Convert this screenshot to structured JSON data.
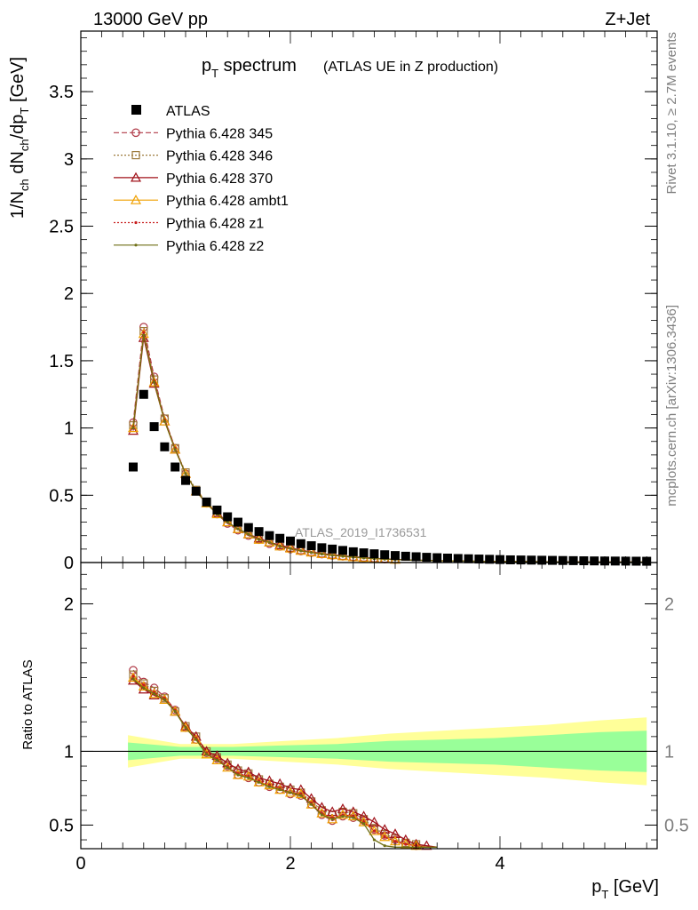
{
  "header": {
    "energy_label": "13000 GeV pp",
    "process_label": "Z+Jet"
  },
  "side_labels": {
    "rivet": "Rivet 3.1.10, ≥ 2.7M events",
    "mcplots": "mcplots.cern.ch [arXiv:1306.3436]"
  },
  "chart_data": [
    {
      "type": "scatter",
      "title_main": "p",
      "title_sub": "T",
      "title_rest": " spectrum",
      "title_note": "(ATLAS UE in Z production)",
      "watermark": "ATLAS_2019_I1736531",
      "ylabel_parts": [
        "1/N",
        "ch",
        " dN",
        "ch",
        "/dp",
        "T",
        " [GeV]"
      ],
      "xlim": [
        0,
        5.5
      ],
      "ylim": [
        0,
        3.95
      ],
      "yticks": [
        0,
        0.5,
        1,
        1.5,
        2,
        2.5,
        3,
        3.5
      ],
      "ytick_labels": [
        "0",
        "0.5",
        "1",
        "1.5",
        "2",
        "2.5",
        "3",
        "3.5"
      ],
      "x": [
        0.5,
        0.6,
        0.7,
        0.8,
        0.9,
        1.0,
        1.1,
        1.2,
        1.3,
        1.4,
        1.5,
        1.6,
        1.7,
        1.8,
        1.9,
        2.0,
        2.1,
        2.2,
        2.3,
        2.4,
        2.5,
        2.6,
        2.7,
        2.8,
        2.9,
        3.0,
        3.1,
        3.2,
        3.3,
        3.4,
        3.5,
        3.6,
        3.7,
        3.8,
        3.9,
        4.0,
        4.1,
        4.2,
        4.3,
        4.4,
        4.5,
        4.6,
        4.7,
        4.8,
        4.9,
        5.0,
        5.1,
        5.2,
        5.3,
        5.4
      ],
      "data_series": {
        "name": "ATLAS",
        "values": [
          0.71,
          1.25,
          1.01,
          0.86,
          0.71,
          0.61,
          0.53,
          0.45,
          0.39,
          0.34,
          0.3,
          0.26,
          0.23,
          0.2,
          0.18,
          0.16,
          0.14,
          0.125,
          0.11,
          0.1,
          0.09,
          0.08,
          0.072,
          0.065,
          0.058,
          0.052,
          0.047,
          0.043,
          0.039,
          0.036,
          0.033,
          0.03,
          0.028,
          0.026,
          0.024,
          0.022,
          0.02,
          0.019,
          0.018,
          0.017,
          0.016,
          0.015,
          0.014,
          0.013,
          0.012,
          0.0115,
          0.011,
          0.0105,
          0.01,
          0.0095
        ]
      },
      "series": [
        {
          "name": "Pythia 6.428 345",
          "color": "#b03a48",
          "dash": "6,3",
          "marker": "circle",
          "values": [
            1.04,
            1.75,
            1.38,
            1.07,
            0.85,
            0.66,
            0.53,
            0.44,
            0.36,
            0.29,
            0.24,
            0.2,
            0.17,
            0.14,
            0.12,
            0.1,
            0.085,
            0.073,
            0.062,
            0.053,
            0.046,
            0.039,
            0.034,
            0.029,
            0.025,
            0.022,
            0.019,
            0.017,
            0.015,
            0.013,
            0.012,
            0.011,
            0.01,
            0.009,
            0.008,
            0.0075,
            0.007,
            0.0065,
            0.006,
            0.0055,
            0.005,
            0.0047,
            0.0044,
            0.0041,
            0.0038,
            0.0036,
            0.0034,
            0.0032,
            0.003,
            0.0028
          ]
        },
        {
          "name": "Pythia 6.428 346",
          "color": "#9c7a3c",
          "dash": "2,2",
          "marker": "square",
          "values": [
            1.02,
            1.72,
            1.36,
            1.07,
            0.85,
            0.67,
            0.54,
            0.45,
            0.37,
            0.3,
            0.25,
            0.21,
            0.18,
            0.15,
            0.13,
            0.11,
            0.09,
            0.078,
            0.066,
            0.057,
            0.049,
            0.042,
            0.036,
            0.031,
            0.027,
            0.023,
            0.02,
            0.018,
            0.016,
            0.014,
            0.013,
            0.012,
            0.011,
            0.01,
            0.009,
            0.008,
            0.0075,
            0.007,
            0.0065,
            0.006,
            0.0055,
            0.005,
            0.0047,
            0.0044,
            0.0041,
            0.0038,
            0.0036,
            0.0034,
            0.0032,
            0.003
          ]
        },
        {
          "name": "Pythia 6.428 370",
          "color": "#a0121a",
          "dash": "",
          "marker": "triangle",
          "values": [
            0.98,
            1.67,
            1.33,
            1.05,
            0.84,
            0.66,
            0.53,
            0.44,
            0.37,
            0.3,
            0.25,
            0.21,
            0.18,
            0.15,
            0.13,
            0.11,
            0.092,
            0.079,
            0.067,
            0.058,
            0.05,
            0.043,
            0.037,
            0.032,
            0.028,
            0.024,
            0.021,
            0.018,
            0.016,
            0.014,
            0.013,
            0.012,
            0.011,
            0.01,
            0.009,
            0.0085,
            0.008,
            0.0075,
            0.007,
            0.0065,
            0.006,
            0.0055,
            0.005,
            0.0047,
            0.0044,
            0.0041,
            0.0038,
            0.0036,
            0.0034,
            0.0032
          ]
        },
        {
          "name": "Pythia 6.428 ambt1",
          "color": "#f0a000",
          "dash": "",
          "marker": "triangle-open",
          "values": [
            1.0,
            1.7,
            1.34,
            1.05,
            0.84,
            0.66,
            0.53,
            0.44,
            0.36,
            0.3,
            0.25,
            0.21,
            0.17,
            0.15,
            0.12,
            0.105,
            0.088,
            0.075,
            0.064,
            0.055,
            0.047,
            0.04,
            0.035,
            0.03,
            0.026,
            0.022,
            0.019,
            0.017,
            0.015,
            0.013,
            0.012,
            0.011,
            0.01,
            0.009,
            0.0085,
            0.008,
            0.0075,
            0.007,
            0.0065,
            0.006,
            0.0055,
            0.005,
            0.0047,
            0.0044,
            0.0041,
            0.0038,
            0.0036,
            0.0034,
            0.0032,
            0.003
          ]
        },
        {
          "name": "Pythia 6.428 z1",
          "color": "#c81e1e",
          "dash": "2,2",
          "marker": "dot",
          "values": [
            1.01,
            1.71,
            1.35,
            1.06,
            0.85,
            0.66,
            0.53,
            0.44,
            0.36,
            0.3,
            0.25,
            0.21,
            0.17,
            0.15,
            0.12,
            0.105,
            0.088,
            0.075,
            0.064,
            0.055,
            0.047,
            0.04,
            0.035,
            0.03,
            0.026,
            0.022,
            0.019,
            0.017,
            0.015,
            0.013,
            0.012,
            0.011,
            0.01,
            0.009,
            0.0085,
            0.008,
            0.0075,
            0.007,
            0.0065,
            0.006,
            0.0055,
            0.005,
            0.0047,
            0.0044,
            0.0041,
            0.0038,
            0.0036,
            0.0034,
            0.0032,
            0.003
          ]
        },
        {
          "name": "Pythia 6.428 z2",
          "color": "#6e6e14",
          "dash": "",
          "marker": "dot",
          "values": [
            1.0,
            1.69,
            1.34,
            1.05,
            0.84,
            0.66,
            0.53,
            0.44,
            0.36,
            0.3,
            0.25,
            0.21,
            0.17,
            0.15,
            0.12,
            0.104,
            0.087,
            0.074,
            0.063,
            0.054,
            0.046,
            0.04,
            0.034,
            0.029,
            0.025,
            0.022,
            0.019,
            0.017,
            0.015,
            0.013,
            0.012,
            0.011,
            0.01,
            0.009,
            0.0085,
            0.008,
            0.0075,
            0.007,
            0.0065,
            0.006,
            0.0055,
            0.005,
            0.0047,
            0.0044,
            0.0041,
            0.0038,
            0.0036,
            0.0034,
            0.0032,
            0.003
          ]
        }
      ]
    },
    {
      "type": "line",
      "ylabel": "Ratio to ATLAS",
      "xlabel_main": "p",
      "xlabel_sub": "T",
      "xlabel_rest": " [GeV]",
      "xlim": [
        0,
        5.5
      ],
      "ylim": [
        0.34,
        2.28
      ],
      "xticks": [
        0,
        2,
        4
      ],
      "xtick_labels": [
        "0",
        "2",
        "4"
      ],
      "yticks": [
        0.5,
        1,
        2
      ],
      "ytick_labels": [
        "0.5",
        "1",
        "2"
      ],
      "reference_line": 1,
      "band_x": [
        0.5,
        1.0,
        1.5,
        2.0,
        2.5,
        3.0,
        3.5,
        4.0,
        4.5,
        5.0,
        5.45
      ],
      "inner_band_halfwidth": [
        0.06,
        0.03,
        0.03,
        0.04,
        0.05,
        0.07,
        0.08,
        0.09,
        0.11,
        0.13,
        0.14
      ],
      "outer_band_halfwidth": [
        0.11,
        0.05,
        0.05,
        0.07,
        0.09,
        0.12,
        0.14,
        0.16,
        0.18,
        0.21,
        0.23
      ],
      "x": [
        0.5,
        0.6,
        0.7,
        0.8,
        0.9,
        1.0,
        1.1,
        1.2,
        1.3,
        1.4,
        1.5,
        1.6,
        1.7,
        1.8,
        1.9,
        2.0,
        2.1,
        2.2,
        2.3,
        2.4,
        2.5,
        2.6,
        2.7,
        2.8,
        2.9,
        3.0,
        3.1,
        3.2,
        3.3,
        3.4
      ],
      "series": [
        {
          "name": "Pythia 6.428 345",
          "values": [
            1.55,
            1.47,
            1.43,
            1.37,
            1.28,
            1.16,
            1.08,
            0.99,
            0.95,
            0.9,
            0.84,
            0.82,
            0.79,
            0.76,
            0.74,
            0.71,
            0.7,
            0.64,
            0.57,
            0.53,
            0.56,
            0.55,
            0.53,
            0.47,
            0.43,
            0.4,
            0.37,
            0.36,
            0.34,
            0.32
          ]
        },
        {
          "name": "Pythia 6.428 346",
          "values": [
            1.52,
            1.46,
            1.41,
            1.36,
            1.27,
            1.17,
            1.1,
            1.0,
            0.96,
            0.91,
            0.87,
            0.85,
            0.81,
            0.78,
            0.76,
            0.74,
            0.72,
            0.66,
            0.6,
            0.57,
            0.59,
            0.58,
            0.54,
            0.48,
            0.44,
            0.41,
            0.38,
            0.37,
            0.35,
            0.33
          ]
        },
        {
          "name": "Pythia 6.428 370",
          "values": [
            1.48,
            1.42,
            1.38,
            1.35,
            1.27,
            1.17,
            1.1,
            1.0,
            0.97,
            0.92,
            0.88,
            0.86,
            0.82,
            0.8,
            0.78,
            0.75,
            0.74,
            0.68,
            0.62,
            0.59,
            0.61,
            0.59,
            0.56,
            0.52,
            0.47,
            0.44,
            0.4,
            0.37,
            0.36,
            0.35
          ]
        },
        {
          "name": "Pythia 6.428 ambt1",
          "values": [
            1.5,
            1.44,
            1.39,
            1.35,
            1.27,
            1.16,
            1.08,
            0.98,
            0.94,
            0.89,
            0.84,
            0.83,
            0.79,
            0.77,
            0.74,
            0.72,
            0.71,
            0.64,
            0.58,
            0.54,
            0.57,
            0.56,
            0.52,
            0.46,
            0.42,
            0.39,
            0.37,
            0.36,
            0.35,
            0.34
          ]
        },
        {
          "name": "Pythia 6.428 z1",
          "values": [
            1.51,
            1.45,
            1.4,
            1.36,
            1.28,
            1.16,
            1.09,
            0.99,
            0.95,
            0.9,
            0.85,
            0.83,
            0.8,
            0.77,
            0.75,
            0.72,
            0.71,
            0.65,
            0.58,
            0.55,
            0.57,
            0.56,
            0.52,
            0.46,
            0.42,
            0.39,
            0.37,
            0.36,
            0.35,
            0.34
          ]
        },
        {
          "name": "Pythia 6.428 z2",
          "values": [
            1.49,
            1.43,
            1.39,
            1.35,
            1.27,
            1.16,
            1.08,
            0.98,
            0.94,
            0.89,
            0.84,
            0.82,
            0.79,
            0.76,
            0.74,
            0.72,
            0.7,
            0.64,
            0.57,
            0.54,
            0.56,
            0.55,
            0.51,
            0.4,
            0.36,
            0.35,
            0.34,
            0.34,
            0.34,
            0.34
          ]
        }
      ]
    }
  ]
}
